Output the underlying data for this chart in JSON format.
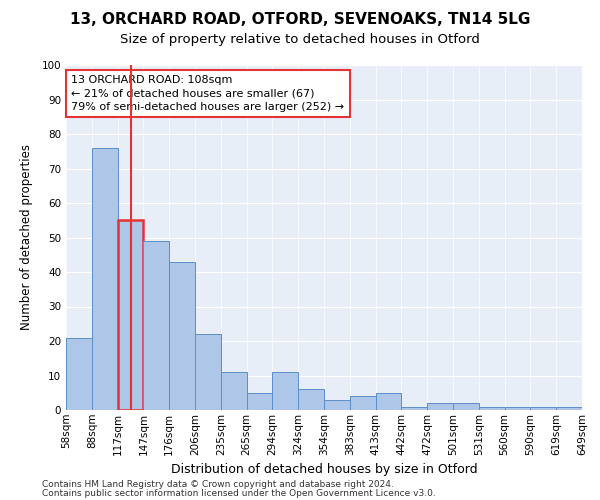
{
  "title1": "13, ORCHARD ROAD, OTFORD, SEVENOAKS, TN14 5LG",
  "title2": "Size of property relative to detached houses in Otford",
  "xlabel": "Distribution of detached houses by size in Otford",
  "ylabel": "Number of detached properties",
  "bins": [
    "58sqm",
    "88sqm",
    "117sqm",
    "147sqm",
    "176sqm",
    "206sqm",
    "235sqm",
    "265sqm",
    "294sqm",
    "324sqm",
    "354sqm",
    "383sqm",
    "413sqm",
    "442sqm",
    "472sqm",
    "501sqm",
    "531sqm",
    "560sqm",
    "590sqm",
    "619sqm",
    "649sqm"
  ],
  "values": [
    21,
    76,
    55,
    49,
    43,
    22,
    11,
    5,
    11,
    6,
    3,
    4,
    5,
    1,
    2,
    2,
    1,
    1,
    1,
    1
  ],
  "bar_color": "#aec6e8",
  "bar_edge_color": "#5b8fc9",
  "highlight_bar_index": 2,
  "highlight_edge_color": "#e53333",
  "vline_color": "#e53333",
  "vline_x": 2,
  "annotation_box_text": "13 ORCHARD ROAD: 108sqm\n← 21% of detached houses are smaller (67)\n79% of semi-detached houses are larger (252) →",
  "annotation_box_color": "white",
  "annotation_box_edge_color": "#e53333",
  "ylim": [
    0,
    100
  ],
  "yticks": [
    0,
    10,
    20,
    30,
    40,
    50,
    60,
    70,
    80,
    90,
    100
  ],
  "footer1": "Contains HM Land Registry data © Crown copyright and database right 2024.",
  "footer2": "Contains public sector information licensed under the Open Government Licence v3.0.",
  "background_color": "#e8eef8",
  "title1_fontsize": 11,
  "title2_fontsize": 9.5,
  "xlabel_fontsize": 9,
  "ylabel_fontsize": 8.5,
  "tick_fontsize": 7.5,
  "annotation_fontsize": 8,
  "footer_fontsize": 6.5
}
